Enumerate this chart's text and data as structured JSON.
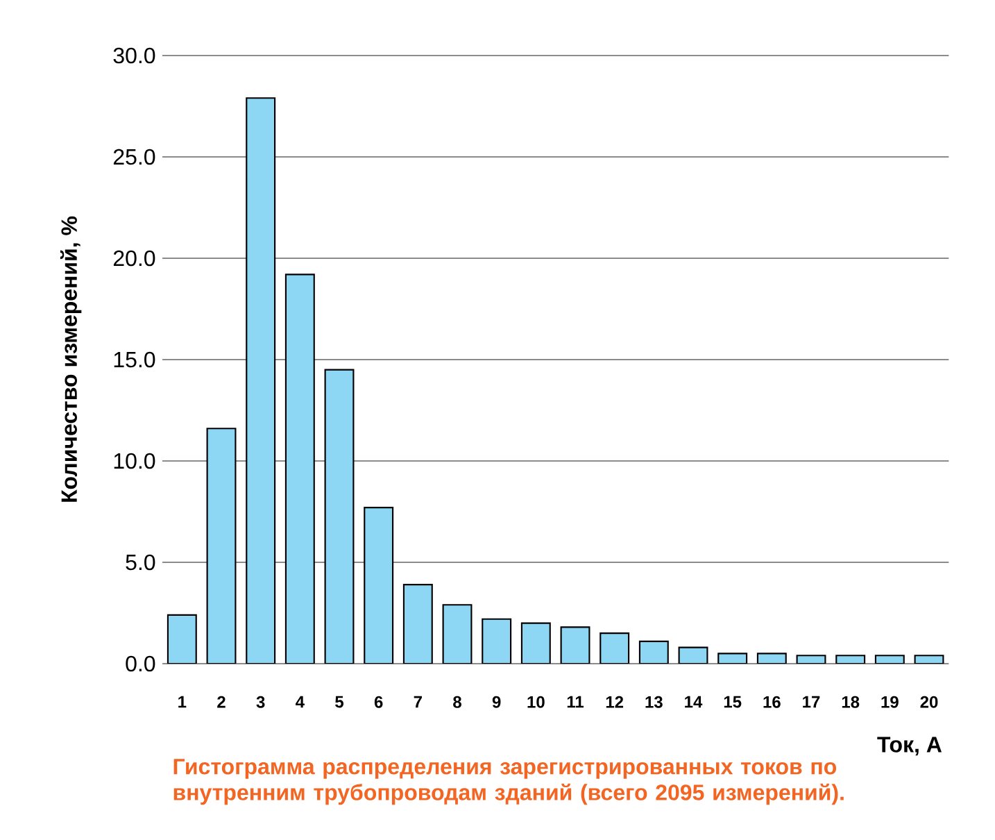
{
  "chart_data": {
    "type": "bar",
    "title": "Гистограмма распределения зарегистрированных токов по внутренним трубопроводам зданий (всего 2095 измерений).",
    "xlabel": "Ток, А",
    "ylabel": "Количество измерений, %",
    "categories": [
      "1",
      "2",
      "3",
      "4",
      "5",
      "6",
      "7",
      "8",
      "9",
      "10",
      "11",
      "12",
      "13",
      "14",
      "15",
      "16",
      "17",
      "18",
      "19",
      "20"
    ],
    "values": [
      2.4,
      11.6,
      27.9,
      19.2,
      14.5,
      7.7,
      3.9,
      2.9,
      2.2,
      2.0,
      1.8,
      1.5,
      1.1,
      0.8,
      0.5,
      0.5,
      0.4,
      0.4,
      0.4,
      0.4
    ],
    "color": "#8dd7f5",
    "ylim": [
      0,
      30
    ],
    "yticks": [
      {
        "value": 0,
        "label": "0.0"
      },
      {
        "value": 5,
        "label": "5.0"
      },
      {
        "value": 10,
        "label": "10.0"
      },
      {
        "value": 15,
        "label": "15.0"
      },
      {
        "value": 20,
        "label": "20.0"
      },
      {
        "value": 25,
        "label": "25.0"
      },
      {
        "value": 30,
        "label": "30.0"
      }
    ],
    "grid": "y"
  }
}
